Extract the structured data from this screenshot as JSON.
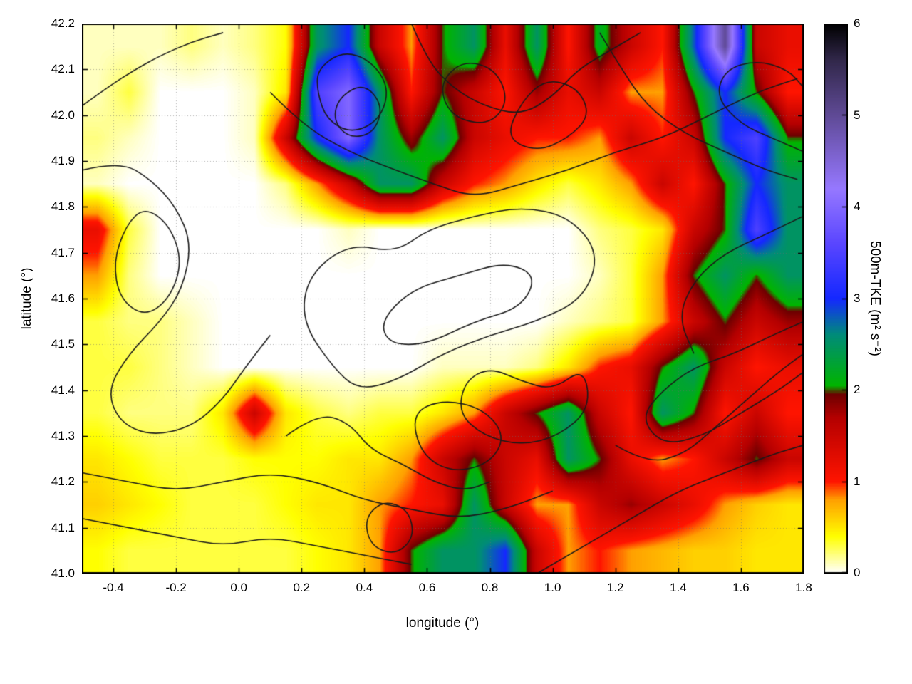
{
  "chart_data": {
    "type": "heatmap",
    "title": "",
    "xlabel": "longitude (°)",
    "ylabel": "latitude (°)",
    "x_range": [
      -0.5,
      1.8
    ],
    "y_range": [
      41.0,
      42.2
    ],
    "grid": "dotted",
    "legend": "none",
    "x_ticks": {
      "values": [
        -0.4,
        -0.2,
        0.0,
        0.2,
        0.4,
        0.6,
        0.8,
        1.0,
        1.2,
        1.4,
        1.6,
        1.8
      ],
      "labels": [
        "-0.4",
        "-0.2",
        "0.0",
        "0.2",
        "0.4",
        "0.6",
        "0.8",
        "1.0",
        "1.2",
        "1.4",
        "1.6",
        "1.8"
      ]
    },
    "y_ticks": {
      "values": [
        41.0,
        41.1,
        41.2,
        41.3,
        41.4,
        41.5,
        41.6,
        41.7,
        41.8,
        41.9,
        42.0,
        42.1,
        42.2
      ],
      "labels": [
        "41.0",
        "41.1",
        "41.2",
        "41.3",
        "41.4",
        "41.5",
        "41.6",
        "41.7",
        "41.8",
        "41.9",
        "42.0",
        "42.1",
        "42.2"
      ]
    },
    "colorbar": {
      "label": "500m-TKE (m² s⁻²)",
      "range": [
        0,
        6
      ],
      "ticks": {
        "values": [
          0,
          1,
          2,
          3,
          4,
          5,
          6
        ],
        "labels": [
          "0",
          "1",
          "2",
          "3",
          "4",
          "5",
          "6"
        ]
      },
      "palette": [
        [
          0.0,
          "#ffffff"
        ],
        [
          0.4,
          "#ffff00"
        ],
        [
          0.8,
          "#ffa000"
        ],
        [
          1.0,
          "#ff1400"
        ],
        [
          1.7,
          "#b40000"
        ],
        [
          1.95,
          "#6e0000"
        ],
        [
          2.05,
          "#00b400"
        ],
        [
          2.6,
          "#008c78"
        ],
        [
          3.0,
          "#1428ff"
        ],
        [
          3.6,
          "#5a46ff"
        ],
        [
          4.2,
          "#9678ff"
        ],
        [
          5.0,
          "#5f4a96"
        ],
        [
          5.6,
          "#32284b"
        ],
        [
          6.0,
          "#000000"
        ]
      ]
    },
    "grid_x": [
      -0.45,
      -0.35,
      -0.25,
      -0.15,
      -0.05,
      0.05,
      0.15,
      0.25,
      0.35,
      0.45,
      0.55,
      0.65,
      0.75,
      0.85,
      0.95,
      1.05,
      1.15,
      1.25,
      1.35,
      1.45,
      1.55,
      1.65,
      1.75
    ],
    "grid_y": [
      42.15,
      42.05,
      41.95,
      41.85,
      41.75,
      41.65,
      41.55,
      41.45,
      41.35,
      41.25,
      41.15,
      41.05
    ],
    "values": [
      [
        0.1,
        0.1,
        0.1,
        0.2,
        0.1,
        0.2,
        0.4,
        2.5,
        3.0,
        1.5,
        0.8,
        2.0,
        2.5,
        1.2,
        2.5,
        1.0,
        2.2,
        1.5,
        1.0,
        2.8,
        5.0,
        1.5,
        1.2
      ],
      [
        0.1,
        0.3,
        0.0,
        0.0,
        0.0,
        0.1,
        0.5,
        3.5,
        4.0,
        2.5,
        1.0,
        2.0,
        1.5,
        1.0,
        1.8,
        1.2,
        1.5,
        0.8,
        0.8,
        2.0,
        3.0,
        2.0,
        1.0
      ],
      [
        0.2,
        0.1,
        0.0,
        0.0,
        0.0,
        0.1,
        1.5,
        3.0,
        4.0,
        2.5,
        1.8,
        2.5,
        1.5,
        1.2,
        1.0,
        1.0,
        0.8,
        1.5,
        1.0,
        1.5,
        3.0,
        3.5,
        2.0
      ],
      [
        0.1,
        0.0,
        0.0,
        0.0,
        0.0,
        0.0,
        0.2,
        0.8,
        1.5,
        2.5,
        2.5,
        1.5,
        1.0,
        0.8,
        0.5,
        0.3,
        0.5,
        0.8,
        1.5,
        1.0,
        2.0,
        3.0,
        2.5
      ],
      [
        1.2,
        0.3,
        0.0,
        0.0,
        0.0,
        0.0,
        0.0,
        0.0,
        0.1,
        0.0,
        0.0,
        0.0,
        0.0,
        0.0,
        0.0,
        0.0,
        0.2,
        0.3,
        0.5,
        1.5,
        2.0,
        3.5,
        2.5
      ],
      [
        0.8,
        0.2,
        0.0,
        0.0,
        0.0,
        0.0,
        0.0,
        0.0,
        0.0,
        0.0,
        0.0,
        0.0,
        0.0,
        0.0,
        0.0,
        0.0,
        0.1,
        0.3,
        0.8,
        2.0,
        2.5,
        2.0,
        2.5
      ],
      [
        0.3,
        0.2,
        0.2,
        0.1,
        0.0,
        0.0,
        0.0,
        0.0,
        0.0,
        0.0,
        0.0,
        0.0,
        0.0,
        0.0,
        0.0,
        0.1,
        0.2,
        0.3,
        0.8,
        1.5,
        2.0,
        1.5,
        1.8
      ],
      [
        0.3,
        0.3,
        0.2,
        0.1,
        0.0,
        0.0,
        0.0,
        0.0,
        0.0,
        0.0,
        0.0,
        0.1,
        0.1,
        0.1,
        0.2,
        0.5,
        1.0,
        1.2,
        2.0,
        2.5,
        1.5,
        1.0,
        1.2
      ],
      [
        0.3,
        0.2,
        0.2,
        0.2,
        0.5,
        1.5,
        0.5,
        0.3,
        0.2,
        0.3,
        0.3,
        0.5,
        0.8,
        1.5,
        2.0,
        2.5,
        1.5,
        1.0,
        2.5,
        2.0,
        1.0,
        1.5,
        1.0
      ],
      [
        0.5,
        0.4,
        0.3,
        0.3,
        0.3,
        0.4,
        0.4,
        0.4,
        0.5,
        0.5,
        0.8,
        1.5,
        2.0,
        1.5,
        1.2,
        2.5,
        2.0,
        1.2,
        0.8,
        1.0,
        1.5,
        2.0,
        1.5
      ],
      [
        0.6,
        0.5,
        0.4,
        0.3,
        0.3,
        0.3,
        0.4,
        0.5,
        0.5,
        0.8,
        1.0,
        1.2,
        2.5,
        1.5,
        0.8,
        0.8,
        1.5,
        1.8,
        1.5,
        1.2,
        0.8,
        0.6,
        0.5
      ],
      [
        0.4,
        0.3,
        0.3,
        0.3,
        0.3,
        0.3,
        0.3,
        0.4,
        0.5,
        0.8,
        2.0,
        2.5,
        2.5,
        3.0,
        1.5,
        0.8,
        1.0,
        0.8,
        0.7,
        0.6,
        0.6,
        0.5,
        0.5
      ]
    ],
    "contours": [
      [
        [
          0.3,
          41.45
        ],
        [
          0.2,
          41.55
        ],
        [
          0.22,
          41.65
        ],
        [
          0.35,
          41.72
        ],
        [
          0.5,
          41.7
        ],
        [
          0.6,
          41.75
        ],
        [
          0.75,
          41.78
        ],
        [
          0.9,
          41.8
        ],
        [
          1.05,
          41.78
        ],
        [
          1.15,
          41.7
        ],
        [
          1.1,
          41.6
        ],
        [
          0.95,
          41.55
        ],
        [
          0.8,
          41.52
        ],
        [
          0.65,
          41.48
        ],
        [
          0.5,
          41.42
        ],
        [
          0.38,
          41.4
        ],
        [
          0.3,
          41.45
        ]
      ],
      [
        [
          0.45,
          41.55
        ],
        [
          0.55,
          41.62
        ],
        [
          0.7,
          41.65
        ],
        [
          0.85,
          41.68
        ],
        [
          0.95,
          41.65
        ],
        [
          0.9,
          41.58
        ],
        [
          0.75,
          41.55
        ],
        [
          0.6,
          41.5
        ],
        [
          0.48,
          41.5
        ],
        [
          0.45,
          41.55
        ]
      ],
      [
        [
          0.1,
          42.05
        ],
        [
          0.2,
          41.98
        ],
        [
          0.35,
          41.92
        ],
        [
          0.5,
          41.88
        ],
        [
          0.62,
          41.85
        ],
        [
          0.75,
          41.82
        ],
        [
          0.9,
          41.85
        ],
        [
          1.05,
          41.88
        ],
        [
          1.2,
          41.92
        ],
        [
          1.35,
          41.95
        ],
        [
          1.5,
          42.0
        ],
        [
          1.65,
          42.05
        ],
        [
          1.78,
          42.08
        ]
      ],
      [
        [
          -0.5,
          42.02
        ],
        [
          -0.42,
          42.06
        ],
        [
          -0.33,
          42.1
        ],
        [
          -0.25,
          42.13
        ],
        [
          -0.15,
          42.16
        ],
        [
          -0.05,
          42.18
        ]
      ],
      [
        [
          -0.5,
          41.88
        ],
        [
          -0.38,
          41.9
        ],
        [
          -0.28,
          41.86
        ],
        [
          -0.2,
          41.8
        ],
        [
          -0.15,
          41.72
        ],
        [
          -0.18,
          41.62
        ],
        [
          -0.25,
          41.55
        ],
        [
          -0.35,
          41.48
        ],
        [
          -0.42,
          41.4
        ],
        [
          -0.38,
          41.33
        ],
        [
          -0.28,
          41.3
        ],
        [
          -0.15,
          41.32
        ],
        [
          -0.05,
          41.38
        ],
        [
          0.02,
          41.45
        ],
        [
          0.1,
          41.52
        ]
      ],
      [
        [
          -0.5,
          41.22
        ],
        [
          -0.35,
          41.2
        ],
        [
          -0.2,
          41.18
        ],
        [
          -0.05,
          41.2
        ],
        [
          0.1,
          41.22
        ],
        [
          0.25,
          41.2
        ],
        [
          0.4,
          41.16
        ],
        [
          0.55,
          41.14
        ],
        [
          0.7,
          41.12
        ],
        [
          0.85,
          41.14
        ],
        [
          1.0,
          41.18
        ]
      ],
      [
        [
          -0.5,
          41.12
        ],
        [
          -0.35,
          41.1
        ],
        [
          -0.2,
          41.08
        ],
        [
          -0.05,
          41.06
        ],
        [
          0.1,
          41.08
        ],
        [
          0.25,
          41.06
        ],
        [
          0.4,
          41.04
        ],
        [
          0.55,
          41.02
        ]
      ],
      [
        [
          0.95,
          41.0
        ],
        [
          1.1,
          41.06
        ],
        [
          1.25,
          41.12
        ],
        [
          1.4,
          41.18
        ],
        [
          1.55,
          41.22
        ],
        [
          1.7,
          41.26
        ],
        [
          1.8,
          41.28
        ]
      ],
      [
        [
          1.8,
          41.55
        ],
        [
          1.7,
          41.52
        ],
        [
          1.58,
          41.48
        ],
        [
          1.45,
          41.45
        ],
        [
          1.35,
          41.4
        ],
        [
          1.28,
          41.34
        ],
        [
          1.35,
          41.28
        ],
        [
          1.48,
          41.3
        ],
        [
          1.6,
          41.35
        ],
        [
          1.72,
          41.4
        ],
        [
          1.8,
          41.44
        ]
      ],
      [
        [
          1.15,
          42.18
        ],
        [
          1.22,
          42.1
        ],
        [
          1.3,
          42.02
        ],
        [
          1.42,
          41.96
        ],
        [
          1.55,
          41.92
        ],
        [
          1.68,
          41.88
        ],
        [
          1.78,
          41.86
        ]
      ],
      [
        [
          0.25,
          42.1
        ],
        [
          0.33,
          42.14
        ],
        [
          0.42,
          42.12
        ],
        [
          0.48,
          42.06
        ],
        [
          0.45,
          41.99
        ],
        [
          0.36,
          41.96
        ],
        [
          0.28,
          41.99
        ],
        [
          0.25,
          42.05
        ],
        [
          0.25,
          42.1
        ]
      ],
      [
        [
          0.65,
          42.08
        ],
        [
          0.72,
          42.12
        ],
        [
          0.82,
          42.1
        ],
        [
          0.86,
          42.03
        ],
        [
          0.8,
          41.98
        ],
        [
          0.7,
          41.99
        ],
        [
          0.65,
          42.03
        ],
        [
          0.65,
          42.08
        ]
      ],
      [
        [
          1.8,
          41.78
        ],
        [
          1.68,
          41.74
        ],
        [
          1.55,
          41.7
        ],
        [
          1.45,
          41.64
        ],
        [
          1.4,
          41.56
        ],
        [
          1.45,
          41.48
        ]
      ],
      [
        [
          0.55,
          41.35
        ],
        [
          0.65,
          41.38
        ],
        [
          0.78,
          41.36
        ],
        [
          0.85,
          41.3
        ],
        [
          0.8,
          41.24
        ],
        [
          0.68,
          41.22
        ],
        [
          0.58,
          41.26
        ],
        [
          0.55,
          41.35
        ]
      ],
      [
        [
          0.55,
          42.2
        ],
        [
          0.6,
          42.12
        ],
        [
          0.68,
          42.06
        ],
        [
          0.78,
          42.02
        ],
        [
          0.9,
          42.0
        ],
        [
          1.0,
          42.04
        ],
        [
          1.08,
          42.1
        ],
        [
          1.18,
          42.14
        ],
        [
          1.28,
          42.18
        ]
      ],
      [
        [
          0.85,
          41.95
        ],
        [
          0.95,
          41.92
        ],
        [
          1.05,
          41.95
        ],
        [
          1.12,
          42.0
        ],
        [
          1.08,
          42.06
        ],
        [
          0.98,
          42.08
        ],
        [
          0.9,
          42.03
        ],
        [
          0.85,
          41.95
        ]
      ],
      [
        [
          1.8,
          41.92
        ],
        [
          1.7,
          41.95
        ],
        [
          1.6,
          41.98
        ],
        [
          1.52,
          42.04
        ],
        [
          1.55,
          42.1
        ],
        [
          1.65,
          42.12
        ],
        [
          1.75,
          42.1
        ],
        [
          1.8,
          42.06
        ]
      ],
      [
        [
          1.1,
          41.45
        ],
        [
          1.0,
          41.4
        ],
        [
          0.9,
          41.42
        ],
        [
          0.8,
          41.45
        ],
        [
          0.72,
          41.42
        ],
        [
          0.7,
          41.35
        ],
        [
          0.78,
          41.3
        ],
        [
          0.9,
          41.28
        ],
        [
          1.02,
          41.3
        ],
        [
          1.12,
          41.36
        ],
        [
          1.1,
          41.45
        ]
      ],
      [
        [
          1.2,
          41.28
        ],
        [
          1.3,
          41.24
        ],
        [
          1.42,
          41.26
        ],
        [
          1.52,
          41.32
        ],
        [
          1.62,
          41.38
        ],
        [
          1.72,
          41.44
        ],
        [
          1.8,
          41.48
        ]
      ],
      [
        [
          0.32,
          42.04
        ],
        [
          0.4,
          42.07
        ],
        [
          0.46,
          42.02
        ],
        [
          0.43,
          41.96
        ],
        [
          0.35,
          41.95
        ],
        [
          0.3,
          41.99
        ],
        [
          0.32,
          42.04
        ]
      ],
      [
        [
          0.15,
          41.3
        ],
        [
          0.25,
          41.35
        ],
        [
          0.35,
          41.33
        ],
        [
          0.42,
          41.27
        ],
        [
          0.52,
          41.24
        ],
        [
          0.62,
          41.2
        ],
        [
          0.72,
          41.18
        ],
        [
          0.8,
          41.2
        ]
      ],
      [
        [
          0.4,
          41.12
        ],
        [
          0.46,
          41.16
        ],
        [
          0.54,
          41.14
        ],
        [
          0.56,
          41.08
        ],
        [
          0.5,
          41.04
        ],
        [
          0.42,
          41.06
        ],
        [
          0.4,
          41.12
        ]
      ],
      [
        [
          -0.3,
          41.8
        ],
        [
          -0.22,
          41.76
        ],
        [
          -0.18,
          41.68
        ],
        [
          -0.22,
          41.6
        ],
        [
          -0.3,
          41.56
        ],
        [
          -0.38,
          41.6
        ],
        [
          -0.4,
          41.68
        ],
        [
          -0.36,
          41.76
        ],
        [
          -0.3,
          41.8
        ]
      ]
    ]
  }
}
